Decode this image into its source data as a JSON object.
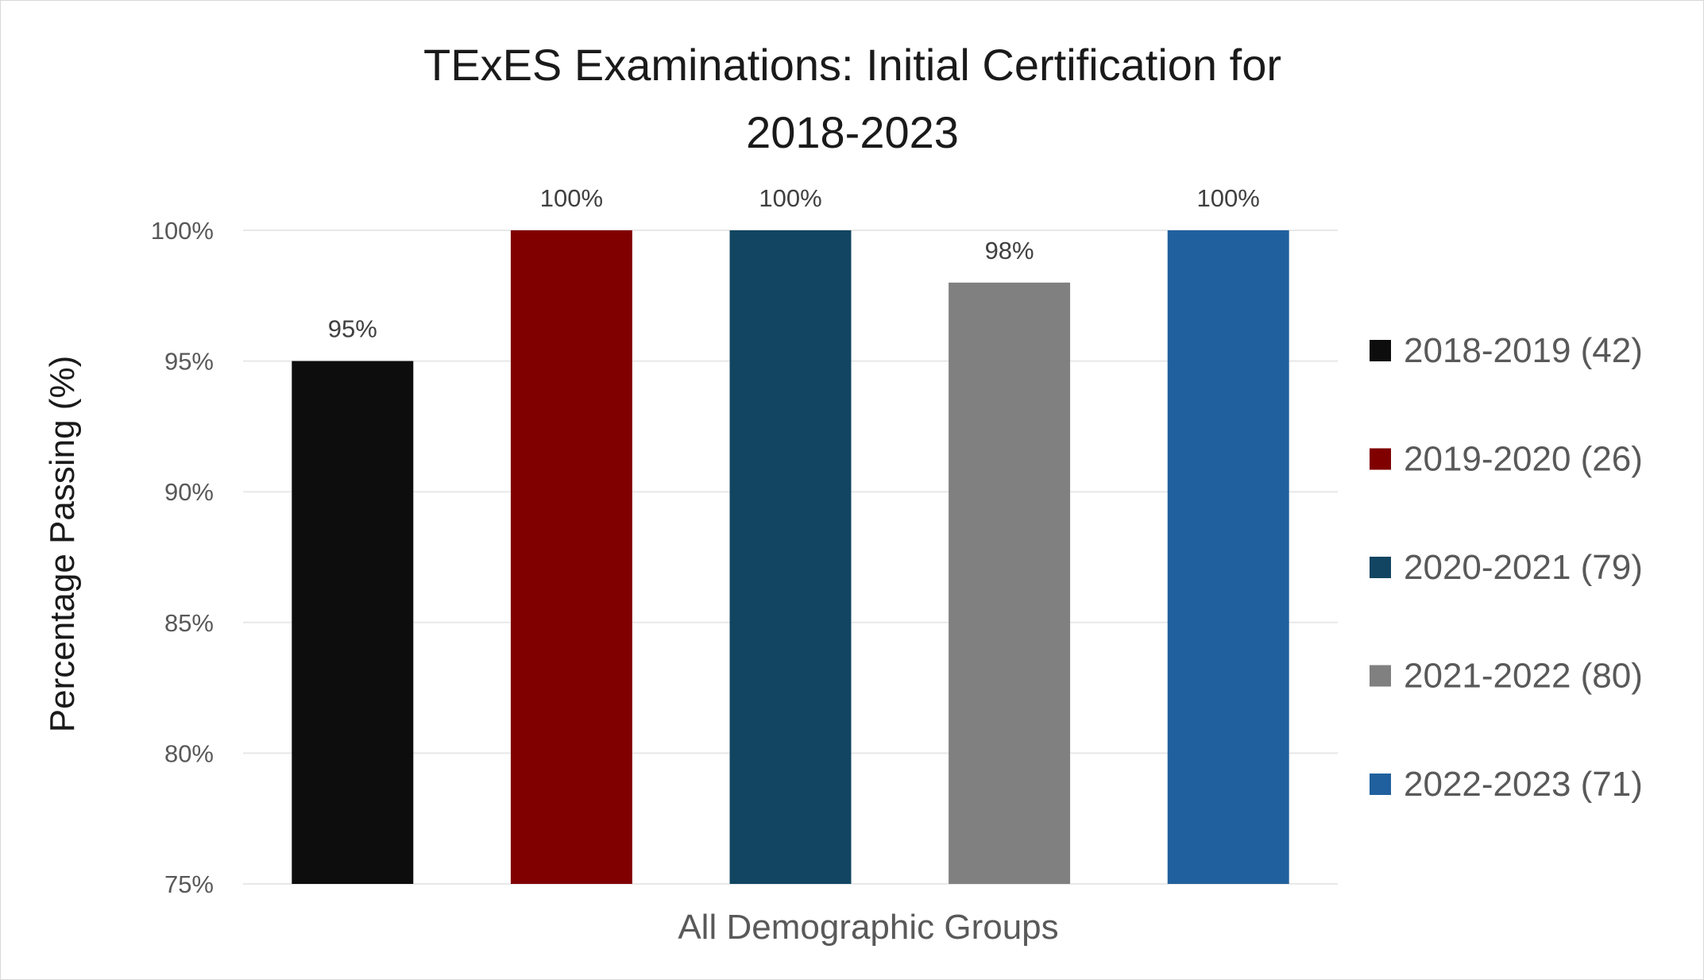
{
  "chart_data": {
    "type": "bar",
    "title_lines": [
      "TExES Examinations: Initial Certification for",
      "2018-2023"
    ],
    "xlabel": "All Demographic Groups",
    "ylabel": "Percentage Passing (%)",
    "ylim": [
      75,
      100
    ],
    "yticks": [
      75,
      80,
      85,
      90,
      95,
      100
    ],
    "ytick_suffix": "%",
    "grid": true,
    "legend_position": "right",
    "series": [
      {
        "name": "2018-2019 (42)",
        "value": 95,
        "label": "95%",
        "color": "#0d0d0d"
      },
      {
        "name": "2019-2020 (26)",
        "value": 100,
        "label": "100%",
        "color": "#800000"
      },
      {
        "name": "2020-2021 (79)",
        "value": 100,
        "label": "100%",
        "color": "#114561"
      },
      {
        "name": "2021-2022 (80)",
        "value": 98,
        "label": "98%",
        "color": "#808080"
      },
      {
        "name": "2022-2023 (71)",
        "value": 100,
        "label": "100%",
        "color": "#21609e"
      }
    ]
  }
}
